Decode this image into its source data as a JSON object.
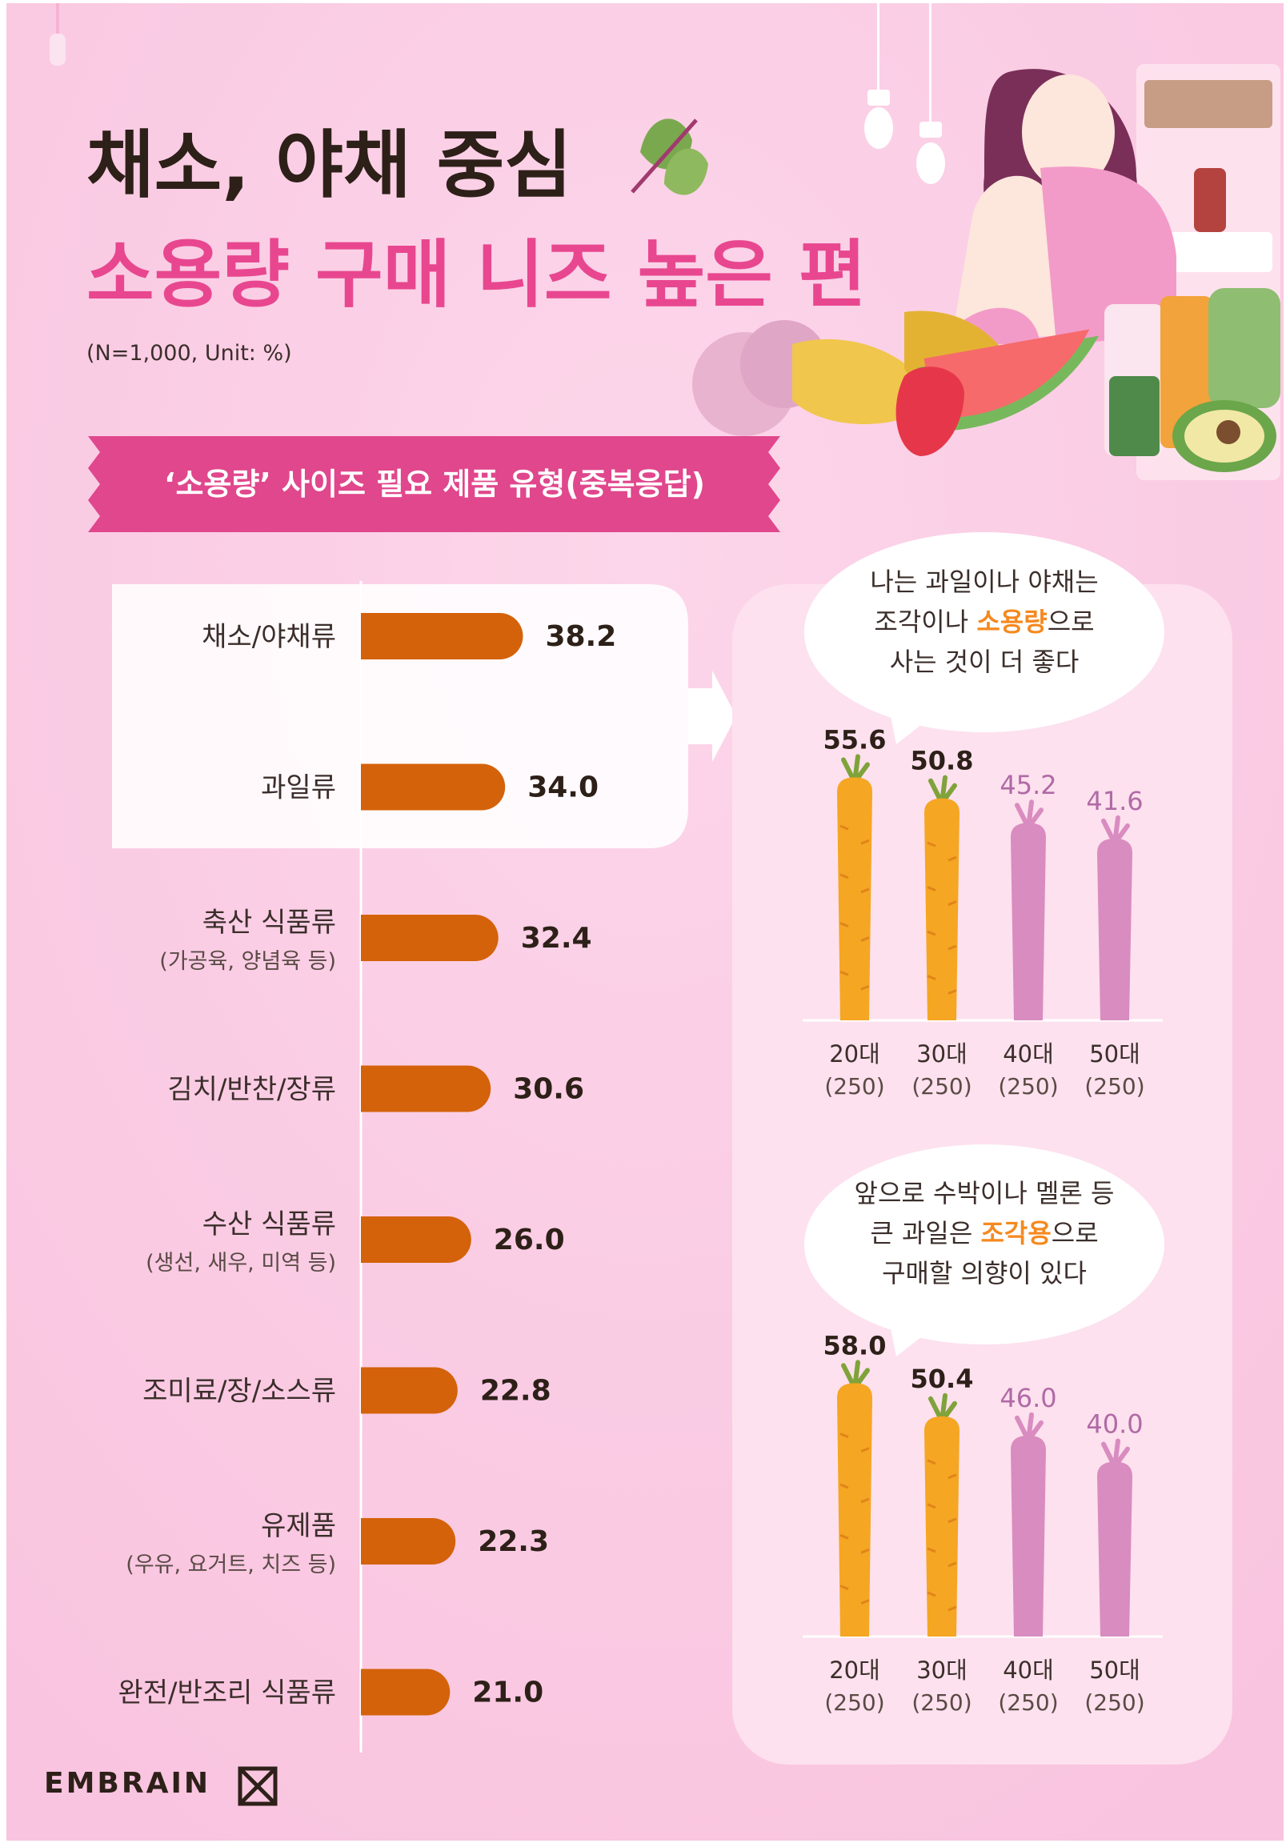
{
  "header": {
    "title_line1": "채소, 야채 중심",
    "title_line2": "소용량 구매 니즈 높은 편",
    "note": "(N=1,000, Unit: %)"
  },
  "banner": {
    "text": "‘소용량’ 사이즈 필요 제품 유형(중복응답)"
  },
  "colors": {
    "background": "#fbd0e6",
    "accent_pink": "#e8478f",
    "bar_orange": "#d4620a",
    "carrot_orange": "#f5a623",
    "carrot_pink": "#d98cc0",
    "highlight_orange": "#f5891f"
  },
  "chart_data": [
    {
      "type": "bar",
      "orientation": "horizontal",
      "title": "‘소용량’ 사이즈 필요 제품 유형(중복응답)",
      "categories": [
        "채소/야채류",
        "과일류",
        "축산 식품류",
        "김치/반찬/장류",
        "수산 식품류",
        "조미료/장/소스류",
        "유제품",
        "완전/반조리 식품류"
      ],
      "category_notes": [
        "",
        "",
        "(가공육, 양념육 등)",
        "",
        "(생선, 새우, 미역 등)",
        "",
        "(우유, 요거트, 치즈 등)",
        ""
      ],
      "values": [
        38.2,
        34.0,
        32.4,
        30.6,
        26.0,
        22.8,
        22.3,
        21.0
      ],
      "value_labels": [
        "38.2",
        "34.0",
        "32.4",
        "30.6",
        "26.0",
        "22.8",
        "22.3",
        "21.0"
      ],
      "highlighted": [
        true,
        true,
        false,
        false,
        false,
        false,
        false,
        false
      ],
      "unit": "%",
      "grid": false
    },
    {
      "type": "bar",
      "style": "carrot-icons",
      "bubble_parts": [
        [
          "나는 과일이나 야채는"
        ],
        [
          "조각이나 ",
          "소용량",
          "으로"
        ],
        [
          "사는 것이 더 좋다"
        ]
      ],
      "categories": [
        "20대",
        "30대",
        "40대",
        "50대"
      ],
      "category_notes": [
        "(250)",
        "(250)",
        "(250)",
        "(250)"
      ],
      "values": [
        55.6,
        50.8,
        45.2,
        41.6
      ],
      "value_labels": [
        "55.6",
        "50.8",
        "45.2",
        "41.6"
      ],
      "highlighted": [
        true,
        true,
        false,
        false
      ],
      "unit": "%"
    },
    {
      "type": "bar",
      "style": "carrot-icons",
      "bubble_parts": [
        [
          "앞으로 수박이나 멜론 등"
        ],
        [
          "큰 과일은 ",
          "조각용",
          "으로"
        ],
        [
          "구매할 의향이 있다"
        ]
      ],
      "categories": [
        "20대",
        "30대",
        "40대",
        "50대"
      ],
      "category_notes": [
        "(250)",
        "(250)",
        "(250)",
        "(250)"
      ],
      "values": [
        58.0,
        50.4,
        46.0,
        40.0
      ],
      "value_labels": [
        "58.0",
        "50.4",
        "46.0",
        "40.0"
      ],
      "highlighted": [
        true,
        true,
        false,
        false
      ],
      "unit": "%"
    }
  ],
  "footer": {
    "brand": "EMBRAIN",
    "logo_icon": "embrain-x-logo-icon"
  }
}
